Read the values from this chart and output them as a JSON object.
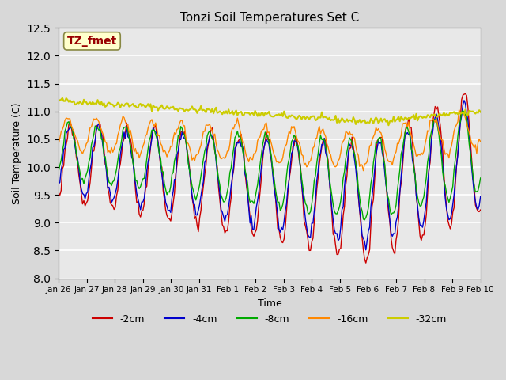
{
  "title": "Tonzi Soil Temperatures Set C",
  "xlabel": "Time",
  "ylabel": "Soil Temperature (C)",
  "ylim": [
    8.0,
    12.5
  ],
  "annotation": "TZ_fmet",
  "annotation_color": "#990000",
  "annotation_bg": "#ffffcc",
  "x_tick_labels": [
    "Jan 26",
    "Jan 27",
    "Jan 28",
    "Jan 29",
    "Jan 30",
    "Jan 31",
    "Feb 1",
    "Feb 2",
    "Feb 3",
    "Feb 4",
    "Feb 5",
    "Feb 6",
    "Feb 7",
    "Feb 8",
    "Feb 9",
    "Feb 10"
  ],
  "legend_labels": [
    "-2cm",
    "-4cm",
    "-8cm",
    "-16cm",
    "-32cm"
  ],
  "line_colors": [
    "#cc0000",
    "#0000cc",
    "#00aa00",
    "#ff8800",
    "#cccc00"
  ],
  "n_points": 336,
  "days": 15
}
